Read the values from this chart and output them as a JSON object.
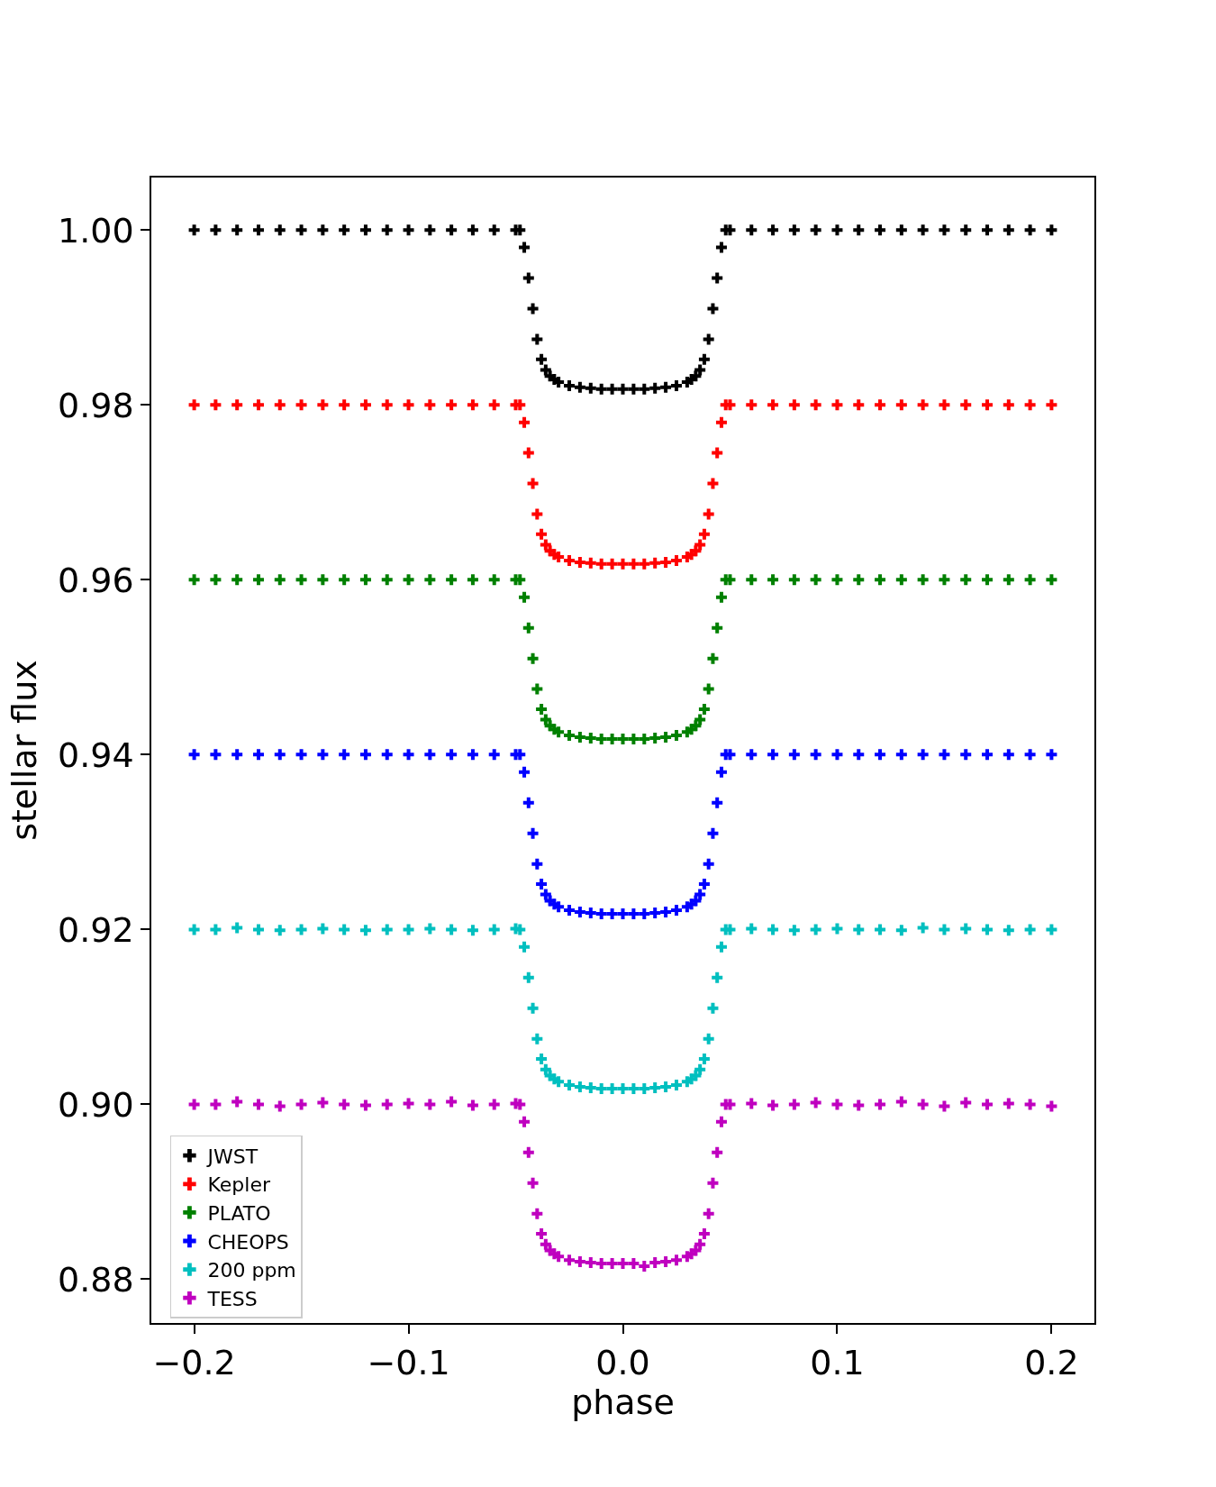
{
  "chart_data": {
    "type": "scatter",
    "xlabel": "phase",
    "ylabel": "stellar flux",
    "marker": "cross",
    "legend": "bottom left",
    "grid": false,
    "xlim": [
      -0.22,
      0.22
    ],
    "xticks": [
      {
        "value": -0.2,
        "label": "−0.2"
      },
      {
        "value": -0.1,
        "label": "−0.1"
      },
      {
        "value": 0,
        "label": "0.0"
      },
      0.1,
      0.2
    ],
    "ylim": [
      0.875,
      1.006
    ],
    "yticks": [
      0.88,
      {
        "value": 0.9,
        "label": "0.90"
      },
      0.92,
      0.94,
      0.96,
      0.98,
      {
        "value": 1,
        "label": "1.00"
      }
    ],
    "x": [
      -0.2,
      -0.19,
      -0.18,
      -0.17,
      -0.16,
      -0.15,
      -0.14,
      -0.13,
      -0.12,
      -0.11,
      -0.1,
      -0.09,
      -0.08,
      -0.07,
      -0.06,
      -0.05,
      -0.048,
      -0.046,
      -0.044,
      -0.042,
      -0.04,
      -0.038,
      -0.036,
      -0.034,
      -0.032,
      -0.03,
      -0.025,
      -0.02,
      -0.015,
      -0.01,
      -0.005,
      0,
      0.005,
      0.01,
      0.015,
      0.02,
      0.025,
      0.03,
      0.032,
      0.034,
      0.036,
      0.038,
      0.04,
      0.042,
      0.044,
      0.046,
      0.048,
      0.05,
      0.06,
      0.07,
      0.08,
      0.09,
      0.1,
      0.11,
      0.12,
      0.13,
      0.14,
      0.15,
      0.16,
      0.17,
      0.18,
      0.19,
      0.2
    ],
    "series": [
      {
        "name": "JWST",
        "color": "#000000",
        "values": [
          1,
          1,
          1,
          1,
          1,
          1,
          1,
          1,
          1,
          1,
          1,
          1,
          1,
          1,
          1,
          1,
          1,
          0.998,
          0.9945,
          0.991,
          0.9875,
          0.9852,
          0.984,
          0.9833,
          0.9829,
          0.9826,
          0.9822,
          0.982,
          0.9819,
          0.9818,
          0.9818,
          0.9818,
          0.9818,
          0.9818,
          0.9819,
          0.982,
          0.9822,
          0.9826,
          0.9829,
          0.9833,
          0.984,
          0.9852,
          0.9875,
          0.991,
          0.9945,
          0.998,
          1,
          1,
          1,
          1,
          1,
          1,
          1,
          1,
          1,
          1,
          1,
          1,
          1,
          1,
          1,
          1,
          1
        ]
      },
      {
        "name": "Kepler",
        "color": "#ff0000",
        "values": [
          0.98,
          0.98,
          0.98,
          0.98,
          0.98,
          0.98,
          0.98,
          0.98,
          0.98,
          0.98,
          0.98,
          0.98,
          0.98,
          0.98,
          0.98,
          0.98,
          0.98,
          0.978,
          0.9745,
          0.971,
          0.9675,
          0.9652,
          0.964,
          0.9633,
          0.9629,
          0.9626,
          0.9622,
          0.962,
          0.9619,
          0.9618,
          0.9618,
          0.9618,
          0.9618,
          0.9618,
          0.9619,
          0.962,
          0.9622,
          0.9626,
          0.9629,
          0.9633,
          0.964,
          0.9652,
          0.9675,
          0.971,
          0.9745,
          0.978,
          0.98,
          0.98,
          0.98,
          0.98,
          0.98,
          0.98,
          0.98,
          0.98,
          0.98,
          0.98,
          0.98,
          0.98,
          0.98,
          0.98,
          0.98,
          0.98,
          0.98
        ]
      },
      {
        "name": "PLATO",
        "color": "#008000",
        "values": [
          0.96,
          0.96,
          0.96,
          0.96,
          0.96,
          0.96,
          0.96,
          0.96,
          0.96,
          0.96,
          0.96,
          0.96,
          0.96,
          0.96,
          0.96,
          0.96,
          0.96,
          0.958,
          0.9545,
          0.951,
          0.9475,
          0.9452,
          0.944,
          0.9433,
          0.9429,
          0.9426,
          0.9422,
          0.942,
          0.9419,
          0.9418,
          0.9418,
          0.9418,
          0.9418,
          0.9418,
          0.9419,
          0.942,
          0.9422,
          0.9426,
          0.9429,
          0.9433,
          0.944,
          0.9452,
          0.9475,
          0.951,
          0.9545,
          0.958,
          0.96,
          0.96,
          0.96,
          0.96,
          0.96,
          0.96,
          0.96,
          0.96,
          0.96,
          0.96,
          0.96,
          0.96,
          0.96,
          0.96,
          0.96,
          0.96,
          0.96
        ]
      },
      {
        "name": "CHEOPS",
        "color": "#0000ff",
        "values": [
          0.94,
          0.94,
          0.94,
          0.94,
          0.94,
          0.94,
          0.94,
          0.94,
          0.94,
          0.94,
          0.94,
          0.94,
          0.94,
          0.94,
          0.94,
          0.94,
          0.94,
          0.938,
          0.9345,
          0.931,
          0.9275,
          0.9252,
          0.924,
          0.9233,
          0.9229,
          0.9226,
          0.9222,
          0.922,
          0.9219,
          0.9218,
          0.9218,
          0.9218,
          0.9218,
          0.9218,
          0.9219,
          0.922,
          0.9222,
          0.9226,
          0.9229,
          0.9233,
          0.924,
          0.9252,
          0.9275,
          0.931,
          0.9345,
          0.938,
          0.94,
          0.94,
          0.94,
          0.94,
          0.94,
          0.94,
          0.94,
          0.94,
          0.94,
          0.94,
          0.94,
          0.94,
          0.94,
          0.94,
          0.94,
          0.94,
          0.94
        ]
      },
      {
        "name": "200 ppm",
        "color": "#00bfbf",
        "values": [
          0.92,
          0.92,
          0.9202,
          0.92,
          0.9199,
          0.92,
          0.9201,
          0.92,
          0.9199,
          0.92,
          0.92,
          0.9201,
          0.92,
          0.9199,
          0.92,
          0.9201,
          0.92,
          0.918,
          0.9145,
          0.911,
          0.9075,
          0.9052,
          0.904,
          0.9033,
          0.9029,
          0.9026,
          0.9022,
          0.902,
          0.9019,
          0.9018,
          0.9018,
          0.9018,
          0.9018,
          0.9018,
          0.9019,
          0.902,
          0.9022,
          0.9026,
          0.9029,
          0.9033,
          0.904,
          0.9052,
          0.9075,
          0.911,
          0.9145,
          0.918,
          0.92,
          0.92,
          0.9201,
          0.92,
          0.9199,
          0.92,
          0.9201,
          0.92,
          0.92,
          0.9199,
          0.9202,
          0.92,
          0.9201,
          0.92,
          0.9199,
          0.92,
          0.92
        ]
      },
      {
        "name": "TESS",
        "color": "#bf00bf",
        "values": [
          0.9,
          0.9,
          0.9003,
          0.9,
          0.8998,
          0.9,
          0.9002,
          0.9,
          0.8999,
          0.9,
          0.9001,
          0.9,
          0.9003,
          0.8999,
          0.9,
          0.9001,
          0.9,
          0.898,
          0.8945,
          0.891,
          0.8875,
          0.8852,
          0.884,
          0.8833,
          0.8829,
          0.8826,
          0.8822,
          0.882,
          0.8819,
          0.8818,
          0.8818,
          0.8818,
          0.8818,
          0.8815,
          0.8819,
          0.882,
          0.8822,
          0.8826,
          0.8829,
          0.8833,
          0.884,
          0.8852,
          0.8875,
          0.891,
          0.8945,
          0.898,
          0.9,
          0.9,
          0.9001,
          0.8999,
          0.9,
          0.9002,
          0.9,
          0.8999,
          0.9,
          0.9003,
          0.9,
          0.8998,
          0.9002,
          0.9,
          0.9001,
          0.9,
          0.8998
        ]
      }
    ]
  }
}
